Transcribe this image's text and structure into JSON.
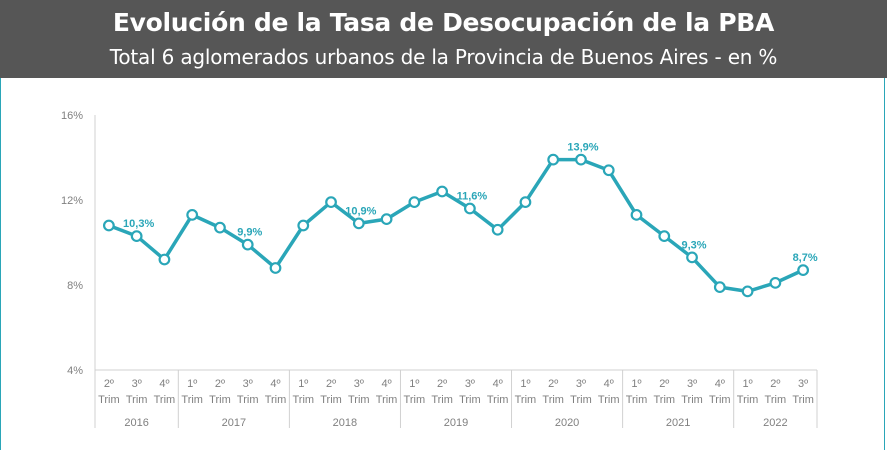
{
  "header": {
    "title": "Evolución de la Tasa de Desocupación de la PBA",
    "subtitle": "Total 6 aglomerados urbanos de la Provincia de Buenos Aires - en %"
  },
  "colors": {
    "line": "#2aa6b8",
    "header_bg": "#565656",
    "axis": "#d0d0d0",
    "tick_text": "#808080"
  },
  "chart_data": {
    "type": "line",
    "ylim": [
      4,
      16
    ],
    "yticks": [
      4,
      8,
      12,
      16
    ],
    "ytick_labels": [
      "4%",
      "8%",
      "12%",
      "16%"
    ],
    "grid": false,
    "x_labels": [
      [
        "2º",
        "Trim"
      ],
      [
        "3º",
        "Trim"
      ],
      [
        "4º",
        "Trim"
      ],
      [
        "1º",
        "Trim"
      ],
      [
        "2º",
        "Trim"
      ],
      [
        "3º",
        "Trim"
      ],
      [
        "4º",
        "Trim"
      ],
      [
        "1º",
        "Trim"
      ],
      [
        "2º",
        "Trim"
      ],
      [
        "3º",
        "Trim"
      ],
      [
        "4º",
        "Trim"
      ],
      [
        "1º",
        "Trim"
      ],
      [
        "2º",
        "Trim"
      ],
      [
        "3º",
        "Trim"
      ],
      [
        "4º",
        "Trim"
      ],
      [
        "1º",
        "Trim"
      ],
      [
        "2º",
        "Trim"
      ],
      [
        "3º",
        "Trim"
      ],
      [
        "4º",
        "Trim"
      ],
      [
        "1º",
        "Trim"
      ],
      [
        "2º",
        "Trim"
      ],
      [
        "3º",
        "Trim"
      ],
      [
        "4º",
        "Trim"
      ],
      [
        "1º",
        "Trim"
      ],
      [
        "2º",
        "Trim"
      ],
      [
        "3º",
        "Trim"
      ]
    ],
    "year_groups": [
      {
        "year": "2016",
        "count": 3
      },
      {
        "year": "2017",
        "count": 4
      },
      {
        "year": "2018",
        "count": 4
      },
      {
        "year": "2019",
        "count": 4
      },
      {
        "year": "2020",
        "count": 4
      },
      {
        "year": "2021",
        "count": 4
      },
      {
        "year": "2022",
        "count": 3
      }
    ],
    "values": [
      10.8,
      10.3,
      9.2,
      11.3,
      10.7,
      9.9,
      8.8,
      10.8,
      11.9,
      10.9,
      11.1,
      11.9,
      12.4,
      11.6,
      10.6,
      11.9,
      13.9,
      13.9,
      13.4,
      11.3,
      10.3,
      9.3,
      7.9,
      7.7,
      8.1,
      8.7
    ],
    "data_labels": [
      {
        "index": 1,
        "text": "10,3%"
      },
      {
        "index": 5,
        "text": "9,9%"
      },
      {
        "index": 9,
        "text": "10,9%"
      },
      {
        "index": 13,
        "text": "11,6%"
      },
      {
        "index": 17,
        "text": "13,9%"
      },
      {
        "index": 21,
        "text": "9,3%"
      },
      {
        "index": 25,
        "text": "8,7%"
      }
    ]
  }
}
